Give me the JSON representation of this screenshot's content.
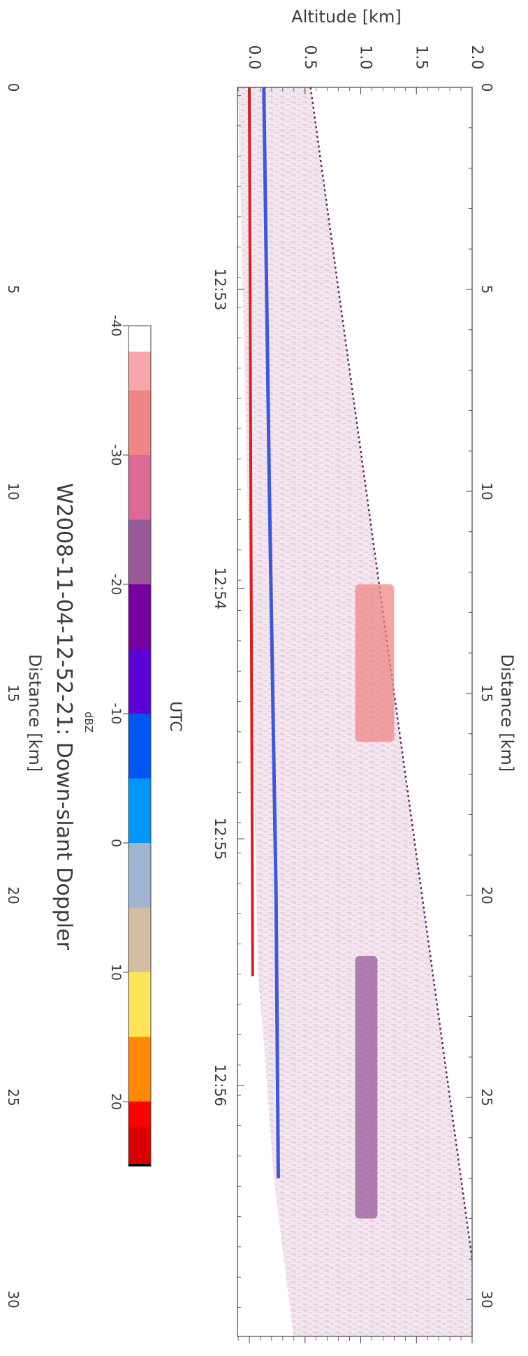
{
  "chart_data": [
    {
      "type": "heatmap",
      "title": "W2008-11-04-12-52-21: Down-slant Doppler",
      "xlabel": "Distance [km]",
      "ylabel": "Altitude [km]",
      "x2label": "UTC",
      "xlim": [
        0,
        30.9
      ],
      "ylim": [
        -0.1,
        2.1
      ],
      "x_ticks": [
        0,
        5,
        10,
        15,
        20,
        25,
        30
      ],
      "y_ticks": [
        0.0,
        0.5,
        1.0,
        1.5,
        2.0
      ],
      "time_ticks": [
        {
          "label": "12:53",
          "distance_km": 5.0
        },
        {
          "label": "12:54",
          "distance_km": 12.4
        },
        {
          "label": "12:55",
          "distance_km": 18.6
        },
        {
          "label": "12:56",
          "distance_km": 24.7
        }
      ],
      "beam_upper_edge": {
        "x": [
          0,
          31
        ],
        "y": [
          0.55,
          2.1
        ]
      },
      "beam_lower_edge": {
        "x": [
          0,
          22,
          24,
          27,
          31
        ],
        "y": [
          -0.1,
          0.08,
          0.14,
          0.22,
          0.4
        ]
      },
      "ground_return": {
        "x": [
          0,
          22
        ],
        "y": [
          0.0,
          0.03
        ],
        "color": "#d42020"
      },
      "near_surface_band": {
        "x": [
          0,
          10,
          20,
          27
        ],
        "y": [
          0.13,
          0.18,
          0.24,
          0.26
        ],
        "color": "#1f3fd0"
      },
      "cloud_patches": [
        {
          "x_range": [
            12.3,
            16.2
          ],
          "y_range": [
            0.95,
            1.3
          ],
          "level_dbz": -35
        },
        {
          "x_range": [
            21.5,
            28.0
          ],
          "y_range": [
            0.95,
            1.15
          ],
          "level_dbz": -22
        }
      ],
      "colorbar": {
        "label": "dBZ",
        "ticks": [
          -40,
          -30,
          -20,
          -10,
          0,
          10,
          20
        ],
        "range": [
          -40,
          25
        ],
        "bins": [
          {
            "from": -40,
            "to": -38,
            "color": "#ffffff"
          },
          {
            "from": -38,
            "to": -35,
            "color": "#f7a6ae"
          },
          {
            "from": -35,
            "to": -30,
            "color": "#ef8585"
          },
          {
            "from": -30,
            "to": -25,
            "color": "#dd6a96"
          },
          {
            "from": -25,
            "to": -20,
            "color": "#975998"
          },
          {
            "from": -20,
            "to": -15,
            "color": "#75009d"
          },
          {
            "from": -15,
            "to": -10,
            "color": "#5c00d8"
          },
          {
            "from": -10,
            "to": -5,
            "color": "#0055f4"
          },
          {
            "from": -5,
            "to": 0,
            "color": "#0096fa"
          },
          {
            "from": 0,
            "to": 5,
            "color": "#a0b3d1"
          },
          {
            "from": 5,
            "to": 10,
            "color": "#d3bea2"
          },
          {
            "from": 10,
            "to": 15,
            "color": "#fee35c"
          },
          {
            "from": 15,
            "to": 20,
            "color": "#fe8a00"
          },
          {
            "from": 20,
            "to": 22,
            "color": "#fd0000"
          },
          {
            "from": 22,
            "to": 24.8,
            "color": "#d80000"
          },
          {
            "from": 24.8,
            "to": 25,
            "color": "#000000"
          }
        ]
      }
    }
  ]
}
